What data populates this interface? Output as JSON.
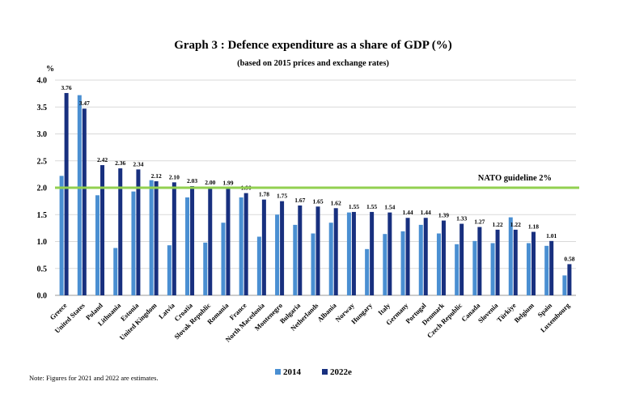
{
  "chart_data": {
    "type": "bar",
    "title": "Graph 3 : Defence expenditure as a share of GDP (%)",
    "subtitle": "(based on 2015 prices and exchange rates)",
    "ylabel": "%",
    "ylim": [
      0,
      4.0
    ],
    "yticks": [
      "0.0",
      "0.5",
      "1.0",
      "1.5",
      "2.0",
      "2.5",
      "3.0",
      "3.5",
      "4.0"
    ],
    "grid": true,
    "legend_position": "bottom",
    "colors": {
      "2014": "#4a8fd2",
      "2022e": "#18307f",
      "guideline": "#92d050"
    },
    "categories": [
      "Greece",
      "United States",
      "Poland",
      "Lithuania",
      "Estonia",
      "United Kingdom",
      "Latvia",
      "Croatia",
      "Slovak Republic",
      "Romania",
      "France",
      "North Macedonia",
      "Montenegro",
      "Bulgaria",
      "Netherlands",
      "Albania",
      "Norway",
      "Hungary",
      "Italy",
      "Germany",
      "Portugal",
      "Denmark",
      "Czech Republic",
      "Canada",
      "Slovenia",
      "Türkiye",
      "Belgium",
      "Spain",
      "Luxembourg"
    ],
    "series": [
      {
        "name": "2014",
        "values": [
          2.22,
          3.72,
          1.86,
          0.88,
          1.93,
          2.14,
          0.93,
          1.82,
          0.98,
          1.35,
          1.82,
          1.09,
          1.5,
          1.31,
          1.15,
          1.35,
          1.54,
          0.86,
          1.14,
          1.19,
          1.31,
          1.15,
          0.95,
          1.01,
          0.97,
          1.45,
          0.97,
          0.92,
          0.37
        ]
      },
      {
        "name": "2022e",
        "values": [
          3.76,
          3.47,
          2.42,
          2.36,
          2.34,
          2.12,
          2.1,
          2.03,
          2.0,
          1.99,
          1.9,
          1.78,
          1.75,
          1.67,
          1.65,
          1.62,
          1.55,
          1.55,
          1.54,
          1.44,
          1.44,
          1.39,
          1.33,
          1.27,
          1.22,
          1.22,
          1.18,
          1.01,
          0.58
        ]
      }
    ],
    "data_labels": [
      "3.76",
      "3.47",
      "2.42",
      "2.36",
      "2.34",
      "2.12",
      "2.10",
      "2.03",
      "2.00",
      "1.99",
      "1.90",
      "1.78",
      "1.75",
      "1.67",
      "1.65",
      "1.62",
      "1.55",
      "1.55",
      "1.54",
      "1.44",
      "1.44",
      "1.39",
      "1.33",
      "1.27",
      "1.22",
      "1.22",
      "1.18",
      "1.01",
      "0.58"
    ],
    "guideline": {
      "value": 2.0,
      "label": "NATO guideline 2%"
    }
  },
  "note": "Note: Figures for 2021 and 2022 are estimates."
}
